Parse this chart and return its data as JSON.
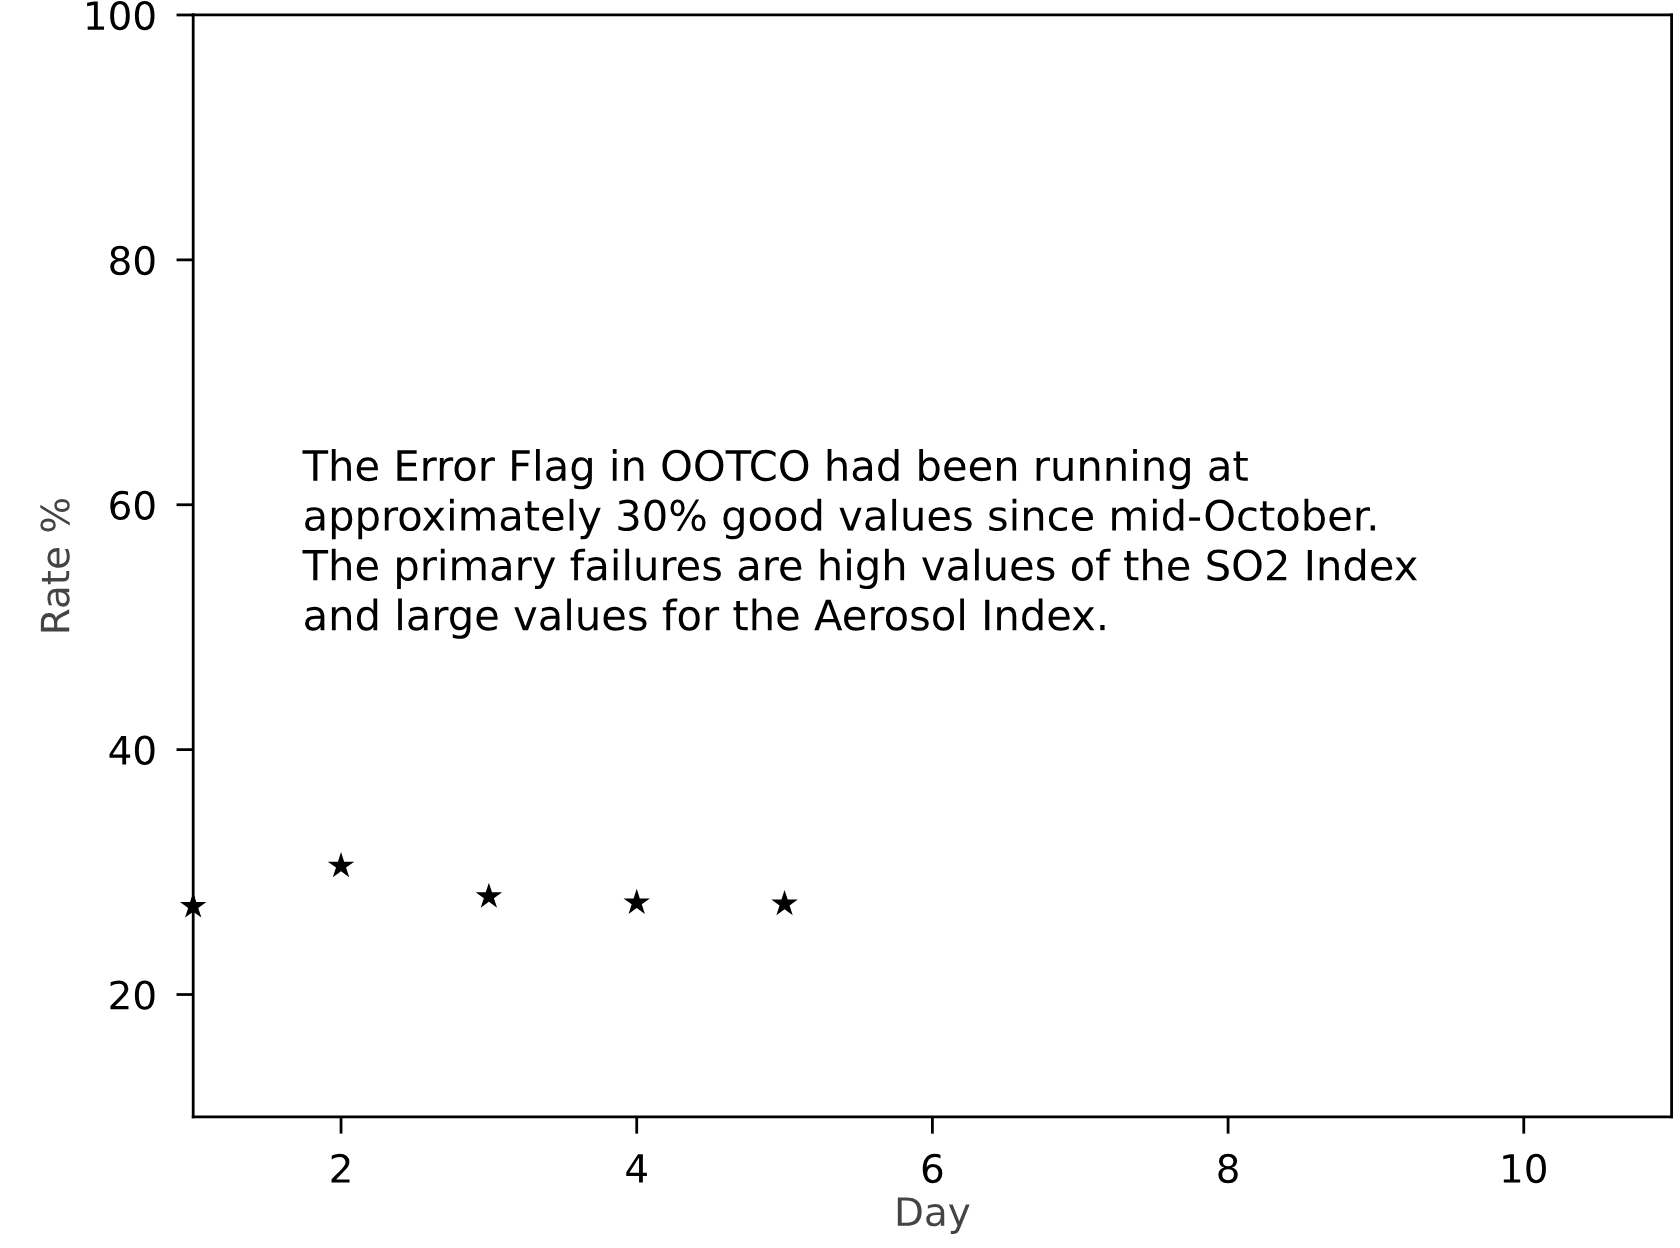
{
  "chart_data": {
    "type": "scatter",
    "xlabel": "Day",
    "ylabel": "Rate %",
    "x": [
      1,
      2,
      3,
      4,
      5
    ],
    "series": [
      {
        "color": "#000000",
        "values": [
          27.2,
          30.5,
          28.0,
          27.5,
          27.4
        ]
      }
    ],
    "marker": "star",
    "xlim": [
      1,
      11
    ],
    "xticks": [
      2,
      4,
      6,
      8,
      10
    ],
    "ylim": [
      10,
      100
    ],
    "yticks": [
      20,
      40,
      60,
      80,
      100
    ],
    "grid": false,
    "annotations": [
      "The Error Flag in OOTCO had been running at\napproximately 30% good values since mid-October.\nThe primary failures are high values of the SO2 Index\nand large values for the Aerosol Index."
    ]
  }
}
